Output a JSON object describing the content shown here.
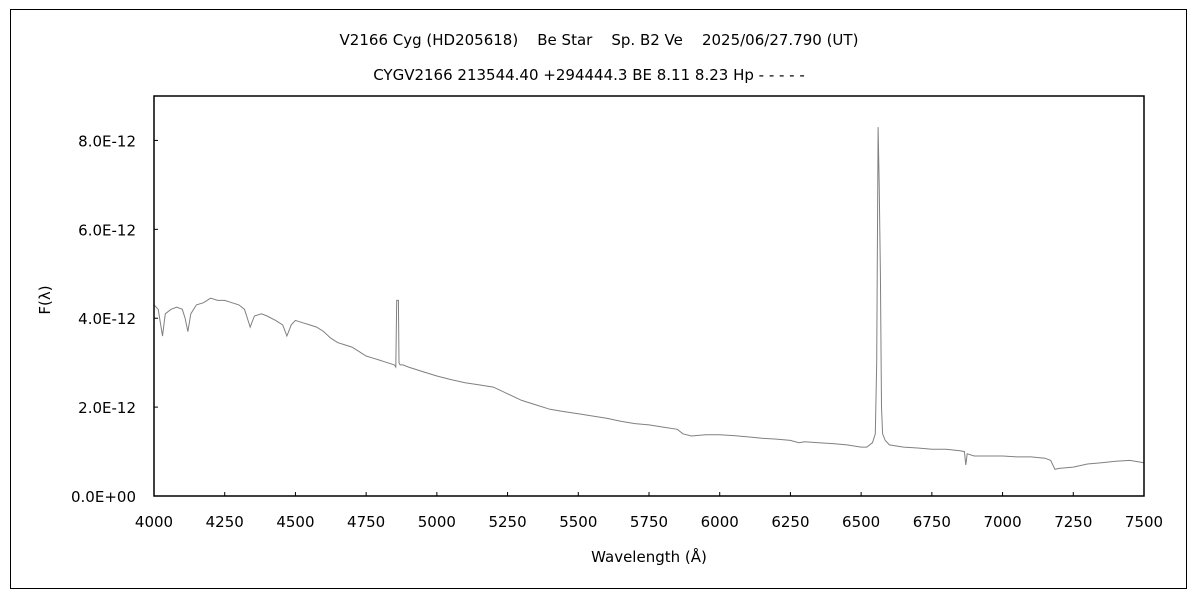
{
  "chart_data": {
    "type": "line",
    "title": "V2166 Cyg (HD205618)    Be Star    Sp. B2 Ve    2025/06/27.790 (UT)",
    "subtitle": "CYGV2166 213544.40 +294444.3 BE 8.11 8.23 Hp - - - - -",
    "xlabel": "Wavelength (Å)",
    "ylabel": "F(λ)",
    "xlim": [
      4000,
      7500
    ],
    "ylim": [
      0,
      9e-12
    ],
    "xticks": [
      4000,
      4250,
      4500,
      4750,
      5000,
      5250,
      5500,
      5750,
      6000,
      6250,
      6500,
      6750,
      7000,
      7250,
      7500
    ],
    "yticks": [
      0,
      2e-12,
      4e-12,
      6e-12,
      8e-12
    ],
    "ytick_labels": [
      "0.0E+00",
      "2.0E-12",
      "4.0E-12",
      "6.0E-12",
      "8.0E-12"
    ],
    "grid": false,
    "line_color": "#808080",
    "series": [
      {
        "x": [
          4000,
          4015,
          4030,
          4040,
          4060,
          4080,
          4100,
          4110,
          4120,
          4130,
          4150,
          4175,
          4200,
          4225,
          4250,
          4275,
          4300,
          4320,
          4340,
          4355,
          4380,
          4400,
          4430,
          4455,
          4470,
          4485,
          4500,
          4525,
          4550,
          4575,
          4600,
          4625,
          4650,
          4675,
          4700,
          4725,
          4750,
          4775,
          4800,
          4825,
          4850,
          4855,
          4858,
          4860,
          4864,
          4866,
          4870,
          4880,
          4900,
          4950,
          5000,
          5050,
          5100,
          5150,
          5200,
          5250,
          5300,
          5350,
          5400,
          5450,
          5500,
          5550,
          5600,
          5650,
          5700,
          5750,
          5800,
          5850,
          5870,
          5900,
          5950,
          6000,
          6050,
          6100,
          6150,
          6200,
          6250,
          6280,
          6300,
          6350,
          6400,
          6450,
          6500,
          6520,
          6540,
          6550,
          6555,
          6560,
          6564,
          6568,
          6572,
          6576,
          6585,
          6600,
          6650,
          6700,
          6750,
          6800,
          6850,
          6865,
          6870,
          6875,
          6900,
          6950,
          7000,
          7050,
          7100,
          7150,
          7170,
          7185,
          7200,
          7250,
          7300,
          7350,
          7400,
          7450,
          7500
        ],
        "y": [
          4.3e-12,
          4.2e-12,
          3.6e-12,
          4.1e-12,
          4.2e-12,
          4.25e-12,
          4.2e-12,
          4e-12,
          3.7e-12,
          4.1e-12,
          4.3e-12,
          4.35e-12,
          4.45e-12,
          4.4e-12,
          4.4e-12,
          4.35e-12,
          4.3e-12,
          4.2e-12,
          3.8e-12,
          4.05e-12,
          4.1e-12,
          4.05e-12,
          3.95e-12,
          3.85e-12,
          3.6e-12,
          3.85e-12,
          3.95e-12,
          3.9e-12,
          3.85e-12,
          3.8e-12,
          3.7e-12,
          3.55e-12,
          3.45e-12,
          3.4e-12,
          3.35e-12,
          3.25e-12,
          3.15e-12,
          3.1e-12,
          3.05e-12,
          3e-12,
          2.95e-12,
          2.9e-12,
          4.4e-12,
          4.4e-12,
          4.4e-12,
          3e-12,
          2.95e-12,
          2.95e-12,
          2.9e-12,
          2.8e-12,
          2.7e-12,
          2.62e-12,
          2.55e-12,
          2.5e-12,
          2.45e-12,
          2.3e-12,
          2.15e-12,
          2.05e-12,
          1.95e-12,
          1.9e-12,
          1.85e-12,
          1.8e-12,
          1.75e-12,
          1.68e-12,
          1.63e-12,
          1.6e-12,
          1.55e-12,
          1.5e-12,
          1.4e-12,
          1.35e-12,
          1.38e-12,
          1.38e-12,
          1.36e-12,
          1.33e-12,
          1.3e-12,
          1.28e-12,
          1.25e-12,
          1.2e-12,
          1.22e-12,
          1.2e-12,
          1.18e-12,
          1.15e-12,
          1.1e-12,
          1.1e-12,
          1.2e-12,
          1.4e-12,
          3e-12,
          8.3e-12,
          7e-12,
          5e-12,
          2e-12,
          1.4e-12,
          1.25e-12,
          1.15e-12,
          1.1e-12,
          1.08e-12,
          1.05e-12,
          1.05e-12,
          1.02e-12,
          1e-12,
          7e-13,
          9.5e-13,
          9e-13,
          9e-13,
          9e-13,
          8.8e-13,
          8.8e-13,
          8.5e-13,
          8e-13,
          6e-13,
          6.2e-13,
          6.5e-13,
          7.2e-13,
          7.5e-13,
          7.8e-13,
          8e-13,
          7.5e-13
        ]
      }
    ]
  }
}
